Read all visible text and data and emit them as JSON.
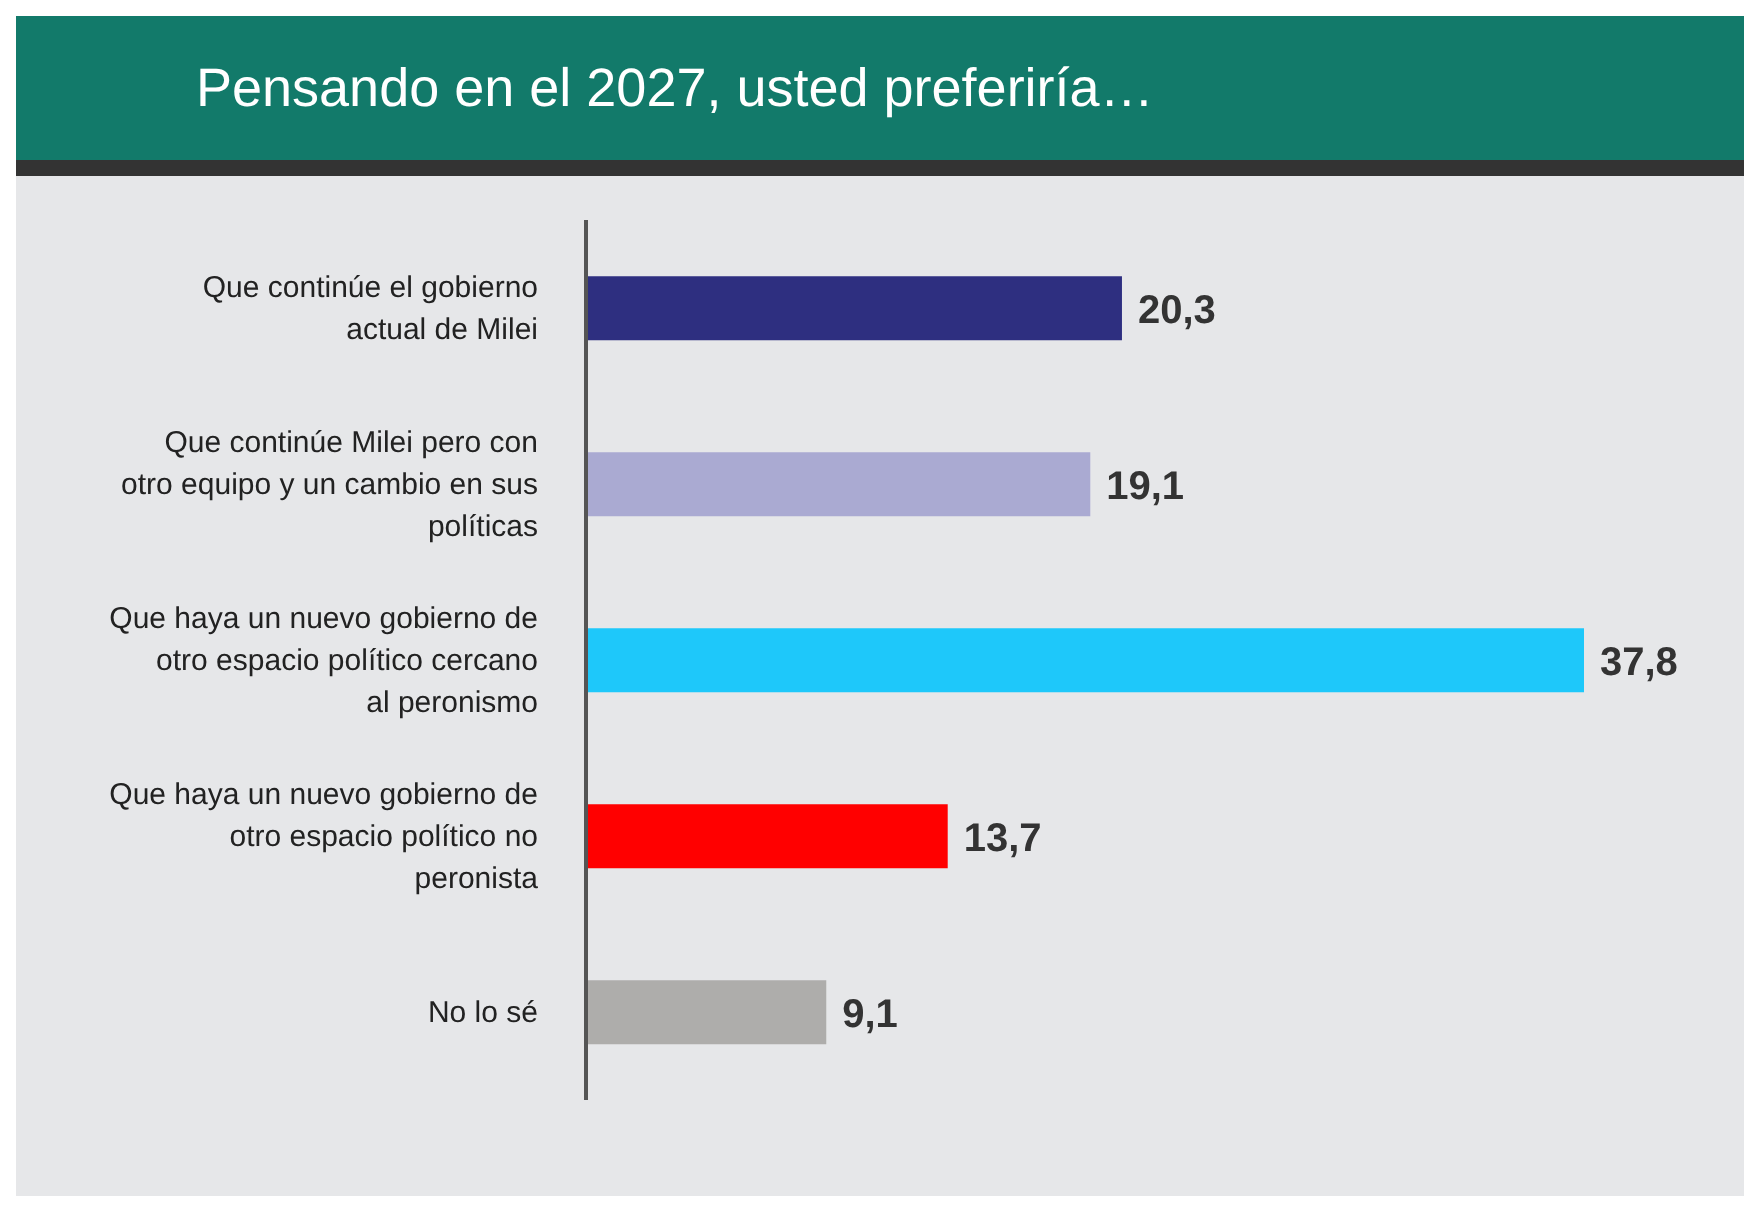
{
  "chart_data": {
    "type": "bar",
    "orientation": "horizontal",
    "title": "Pensando en el 2027, usted preferiría…",
    "categories": [
      "Que continúe el gobierno actual de Milei",
      "Que continúe Milei pero con otro equipo y un cambio en sus políticas",
      "Que haya un nuevo gobierno de otro espacio político cercano al peronismo",
      "Que haya un nuevo gobierno de otro espacio político no peronista",
      "No lo sé"
    ],
    "values": [
      20.3,
      19.1,
      37.8,
      13.7,
      9.1
    ],
    "value_labels": [
      "20,3",
      "19,1",
      "37,8",
      "13,7",
      "9,1"
    ],
    "colors": [
      "#2e2f80",
      "#aaaad2",
      "#1ec8fa",
      "#ff0000",
      "#aeadab"
    ],
    "grid": false,
    "legend": false
  }
}
